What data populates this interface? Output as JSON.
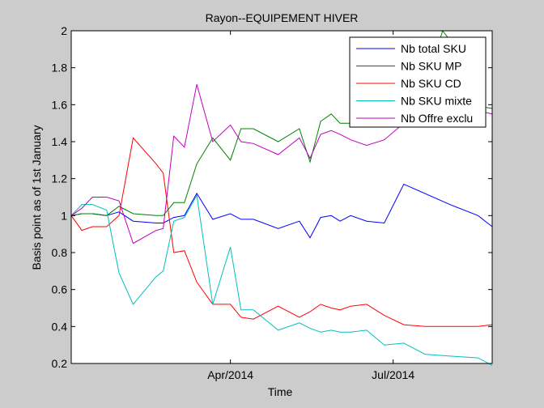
{
  "chart_data": {
    "type": "line",
    "title": "Rayon--EQUIPEMENT HIVER",
    "xlabel": "Time",
    "ylabel": "Basis point as of 1st January",
    "x_tick_labels": [
      "Apr/2014",
      "Jul/2014"
    ],
    "x_tick_positions": [
      90,
      182
    ],
    "xlim": [
      0,
      238
    ],
    "ylim": [
      0.2,
      2.0
    ],
    "y_ticks": [
      0.2,
      0.4,
      0.6,
      0.8,
      1.0,
      1.2,
      1.4,
      1.6,
      1.8,
      2.0
    ],
    "y_tick_labels": [
      "0.2",
      "0.4",
      "0.6",
      "0.8",
      "1",
      "1.2",
      "1.4",
      "1.6",
      "1.8",
      "2"
    ],
    "grid": false,
    "legend_position": "top-right",
    "series": [
      {
        "name": "Nb total SKU",
        "color": "#0000ff",
        "x": [
          0,
          6,
          12,
          20,
          27,
          35,
          48,
          52,
          58,
          64,
          71,
          80,
          90,
          96,
          103,
          117,
          129,
          135,
          141,
          147,
          152,
          158,
          167,
          177,
          188,
          214,
          230,
          238
        ],
        "y": [
          1.0,
          1.01,
          1.01,
          1.0,
          1.02,
          0.97,
          0.96,
          0.96,
          0.99,
          1.0,
          1.12,
          0.98,
          1.01,
          0.98,
          0.98,
          0.93,
          0.97,
          0.88,
          0.99,
          1.0,
          0.97,
          1.0,
          0.97,
          0.96,
          1.17,
          1.06,
          1.0,
          0.94
        ]
      },
      {
        "name": "Nb SKU MP",
        "color": "#008000",
        "x": [
          0,
          6,
          12,
          20,
          27,
          35,
          48,
          52,
          58,
          64,
          71,
          80,
          90,
          96,
          103,
          117,
          129,
          135,
          141,
          147,
          152,
          158,
          167,
          177,
          188,
          200,
          210,
          214,
          224,
          238
        ],
        "y": [
          1.0,
          1.01,
          1.01,
          1.0,
          1.05,
          1.01,
          1.0,
          1.0,
          1.07,
          1.07,
          1.28,
          1.42,
          1.3,
          1.47,
          1.47,
          1.4,
          1.47,
          1.29,
          1.51,
          1.55,
          1.5,
          1.5,
          1.5,
          1.55,
          1.55,
          1.7,
          2.0,
          1.95,
          1.6,
          1.58
        ]
      },
      {
        "name": "Nb SKU CD",
        "color": "#ff0000",
        "x": [
          0,
          6,
          12,
          20,
          27,
          35,
          48,
          52,
          58,
          64,
          71,
          80,
          90,
          96,
          103,
          117,
          129,
          135,
          141,
          147,
          152,
          158,
          167,
          177,
          188,
          200,
          214,
          230,
          238
        ],
        "y": [
          1.0,
          0.92,
          0.94,
          0.94,
          1.0,
          1.42,
          1.28,
          1.23,
          0.8,
          0.81,
          0.64,
          0.52,
          0.52,
          0.45,
          0.44,
          0.51,
          0.45,
          0.48,
          0.52,
          0.5,
          0.49,
          0.51,
          0.52,
          0.46,
          0.41,
          0.4,
          0.4,
          0.4,
          0.41
        ]
      },
      {
        "name": "Nb SKU mixte",
        "color": "#00bfbf",
        "x": [
          0,
          6,
          12,
          20,
          27,
          35,
          48,
          52,
          58,
          64,
          71,
          80,
          90,
          96,
          103,
          117,
          129,
          135,
          141,
          147,
          152,
          158,
          167,
          177,
          188,
          200,
          214,
          230,
          238
        ],
        "y": [
          1.0,
          1.06,
          1.06,
          1.03,
          0.69,
          0.52,
          0.67,
          0.7,
          0.97,
          0.99,
          1.11,
          0.52,
          0.83,
          0.49,
          0.49,
          0.38,
          0.42,
          0.39,
          0.37,
          0.38,
          0.37,
          0.37,
          0.38,
          0.3,
          0.31,
          0.25,
          0.24,
          0.23,
          0.19
        ]
      },
      {
        "name": "Nb Offre exclu",
        "color": "#bf00bf",
        "x": [
          0,
          6,
          12,
          20,
          27,
          35,
          48,
          52,
          58,
          64,
          71,
          80,
          90,
          96,
          103,
          117,
          129,
          135,
          141,
          147,
          152,
          158,
          167,
          177,
          188,
          200,
          214,
          238
        ],
        "y": [
          1.0,
          1.04,
          1.1,
          1.1,
          1.08,
          0.85,
          0.92,
          0.93,
          1.43,
          1.37,
          1.71,
          1.4,
          1.49,
          1.4,
          1.39,
          1.33,
          1.42,
          1.31,
          1.44,
          1.46,
          1.44,
          1.41,
          1.38,
          1.41,
          1.5,
          1.5,
          1.6,
          1.55
        ]
      }
    ]
  }
}
